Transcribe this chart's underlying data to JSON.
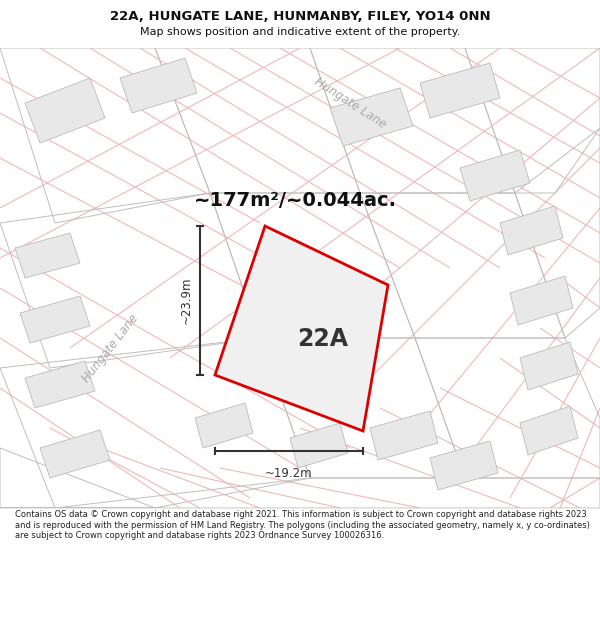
{
  "title_line1": "22A, HUNGATE LANE, HUNMANBY, FILEY, YO14 0NN",
  "title_line2": "Map shows position and indicative extent of the property.",
  "area_text": "~177m²/~0.044ac.",
  "label_22a": "22A",
  "dim_height": "~23.9m",
  "dim_width": "~19.2m",
  "road_label_left": "Hungate Lane",
  "road_label_top": "Hungate Lane",
  "footer_text": "Contains OS data © Crown copyright and database right 2021. This information is subject to Crown copyright and database rights 2023 and is reproduced with the permission of HM Land Registry. The polygons (including the associated geometry, namely x, y co-ordinates) are subject to Crown copyright and database rights 2023 Ordnance Survey 100026316.",
  "bg_color": "#ffffff",
  "map_bg": "#ffffff",
  "road_line_color": "#f0b8b8",
  "gray_line_color": "#c0bebe",
  "building_fill": "#e8e8e8",
  "building_edge": "#bbbbbb",
  "plot_fill": "#f0f0f0",
  "plot_edge": "#dd0000",
  "dim_color": "#333333",
  "title_color": "#111111",
  "footer_color": "#222222",
  "road_label_color": "#aaaaaa",
  "area_text_color": "#111111"
}
